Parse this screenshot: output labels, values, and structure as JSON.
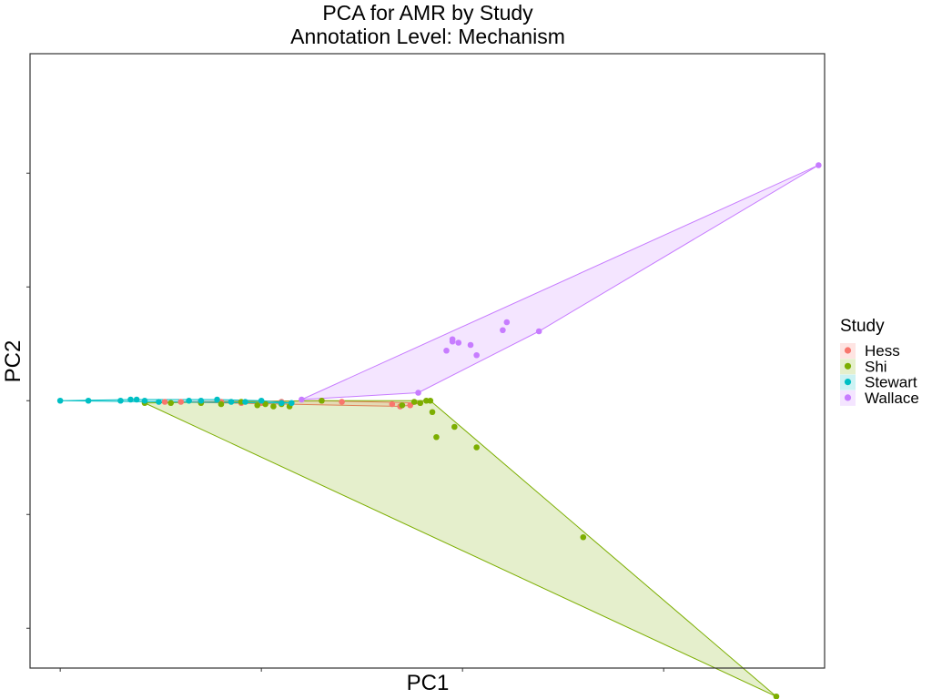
{
  "chart_data": {
    "type": "scatter",
    "title": "PCA for AMR by Study",
    "subtitle": "Annotation Level: Mechanism",
    "xlabel": "PC1",
    "ylabel": "PC2",
    "xlim": [
      -0.15,
      3.8
    ],
    "ylim": [
      -2.85,
      2.55
    ],
    "x_ticks": [
      0,
      1,
      2,
      3
    ],
    "y_ticks": [
      -2.5,
      -1.5,
      -0.5,
      0.5,
      1.5
    ],
    "grid": false,
    "hulls": true,
    "legend": {
      "title": "Study",
      "position": "right"
    },
    "series": [
      {
        "name": "Hess",
        "color": "#F8766D",
        "points": [
          [
            0.52,
            -0.51
          ],
          [
            0.6,
            -0.51
          ],
          [
            0.7,
            -0.51
          ],
          [
            0.8,
            -0.51
          ],
          [
            0.9,
            -0.52
          ],
          [
            1.0,
            -0.52
          ],
          [
            1.1,
            -0.51
          ],
          [
            1.3,
            -0.5
          ],
          [
            1.4,
            -0.51
          ],
          [
            1.65,
            -0.53
          ],
          [
            1.69,
            -0.55
          ],
          [
            1.74,
            -0.54
          ],
          [
            1.79,
            -0.52
          ]
        ]
      },
      {
        "name": "Shi",
        "color": "#7CAE00",
        "points": [
          [
            0.42,
            -0.52
          ],
          [
            0.55,
            -0.52
          ],
          [
            0.7,
            -0.52
          ],
          [
            0.8,
            -0.53
          ],
          [
            0.9,
            -0.51
          ],
          [
            0.98,
            -0.54
          ],
          [
            1.02,
            -0.53
          ],
          [
            1.06,
            -0.55
          ],
          [
            1.1,
            -0.53
          ],
          [
            1.14,
            -0.55
          ],
          [
            1.3,
            -0.5
          ],
          [
            1.7,
            -0.54
          ],
          [
            1.76,
            -0.51
          ],
          [
            1.79,
            -0.52
          ],
          [
            1.82,
            -0.5
          ],
          [
            1.85,
            -0.6
          ],
          [
            1.87,
            -0.82
          ],
          [
            1.96,
            -0.73
          ],
          [
            2.07,
            -0.91
          ],
          [
            2.6,
            -1.7
          ],
          [
            3.56,
            -3.1
          ],
          [
            1.84,
            -0.5
          ]
        ]
      },
      {
        "name": "Stewart",
        "color": "#00BFC4",
        "points": [
          [
            0.0,
            -0.5
          ],
          [
            0.14,
            -0.5
          ],
          [
            0.3,
            -0.5
          ],
          [
            0.35,
            -0.49
          ],
          [
            0.38,
            -0.49
          ],
          [
            0.42,
            -0.5
          ],
          [
            0.49,
            -0.51
          ],
          [
            0.64,
            -0.5
          ],
          [
            0.7,
            -0.5
          ],
          [
            0.78,
            -0.49
          ],
          [
            0.85,
            -0.51
          ],
          [
            0.92,
            -0.51
          ],
          [
            1.0,
            -0.5
          ],
          [
            1.1,
            -0.52
          ],
          [
            1.15,
            -0.52
          ]
        ]
      },
      {
        "name": "Wallace",
        "color": "#C77CFF",
        "points": [
          [
            1.78,
            -0.43
          ],
          [
            1.92,
            -0.06
          ],
          [
            1.95,
            0.02
          ],
          [
            1.95,
            0.04
          ],
          [
            1.98,
            0.01
          ],
          [
            2.04,
            -0.01
          ],
          [
            2.07,
            -0.1
          ],
          [
            2.2,
            0.12
          ],
          [
            2.22,
            0.19
          ],
          [
            2.38,
            0.11
          ],
          [
            3.77,
            1.57
          ],
          [
            1.2,
            -0.49
          ]
        ]
      }
    ]
  }
}
